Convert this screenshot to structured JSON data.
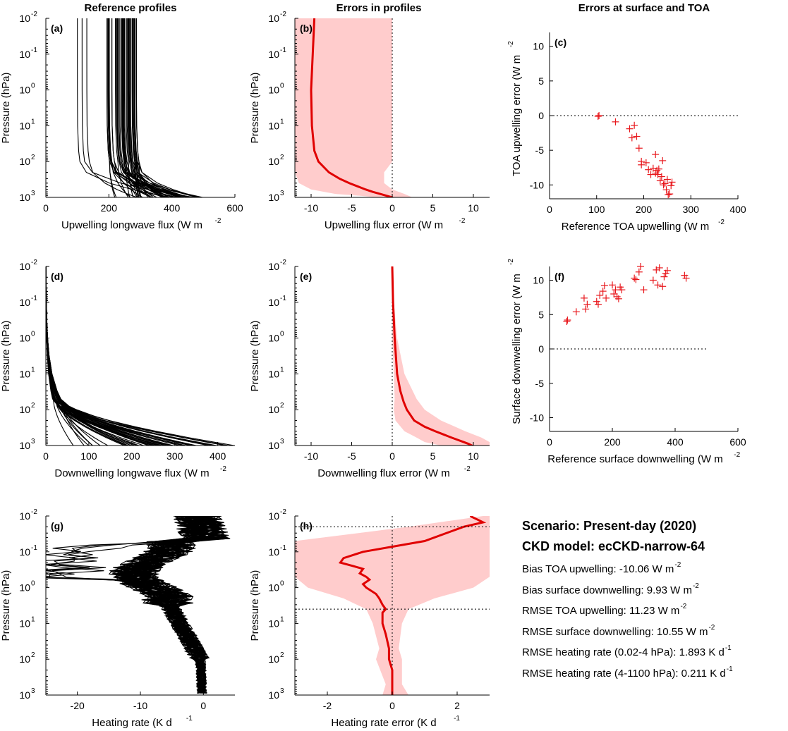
{
  "column_titles": [
    "Reference profiles",
    "Errors in profiles",
    "Errors at surface and TOA"
  ],
  "summary": {
    "scenario": "Scenario: Present-day (2020)",
    "model": "CKD model: ecCKD-narrow-64",
    "stats": [
      {
        "label": "Bias TOA upwelling: -10.06 W m",
        "sup": "-2"
      },
      {
        "label": "Bias surface downwelling: 9.93 W m",
        "sup": "-2"
      },
      {
        "label": "RMSE TOA upwelling: 11.23 W m",
        "sup": "-2"
      },
      {
        "label": "RMSE surface downwelling: 10.55 W m",
        "sup": "-2"
      },
      {
        "label": "RMSE heating rate (0.02-4 hPa):  1.893 K d",
        "sup": "-1"
      },
      {
        "label": "RMSE heating rate (4-1100 hPa):  0.211 K d",
        "sup": "-1"
      }
    ]
  },
  "chart_data": [
    {
      "id": "a",
      "panel_label": "(a)",
      "type": "line",
      "xlabel": "Upwelling longwave flux (W m",
      "xlabel_sup": "-2",
      "ylabel": "Pressure (hPa)",
      "yscale": "log",
      "yreverse": true,
      "xlim": [
        0,
        600
      ],
      "xticks": [
        0,
        200,
        400,
        600
      ],
      "ylim": [
        0.01,
        1000
      ],
      "description_values": "about 50 profiles; TOA flux ~100-300 W m-2, surface flux ~200-500 W m-2",
      "profiles": {
        "count": 50,
        "toa_range": [
          100,
          300
        ],
        "surface_range": [
          200,
          500
        ],
        "kink_pressure": 100
      }
    },
    {
      "id": "b",
      "panel_label": "(b)",
      "type": "line",
      "xlabel": "Upwelling flux error (W m",
      "xlabel_sup": "-2",
      "ylabel": "Pressure (hPa)",
      "yscale": "log",
      "yreverse": true,
      "xlim": [
        -12,
        12
      ],
      "xticks": [
        -10,
        -5,
        0,
        5,
        10
      ],
      "ylim": [
        0.01,
        1000
      ],
      "mean": {
        "pressure": [
          0.01,
          0.1,
          1,
          10,
          50,
          100,
          200,
          300,
          400,
          500,
          600,
          700,
          800,
          900,
          1000,
          1050
        ],
        "value": [
          -9.6,
          -9.8,
          -10.0,
          -9.9,
          -9.6,
          -9.1,
          -7.8,
          -6.5,
          -5.3,
          -4.2,
          -3.3,
          -2.4,
          -1.5,
          -0.7,
          0.0,
          0.1
        ]
      },
      "band": {
        "pressure": [
          0.01,
          0.1,
          1,
          10,
          100,
          200,
          400,
          600,
          800,
          900,
          1000,
          1050
        ],
        "lower": [
          -12,
          -12,
          -12,
          -12,
          -12,
          -12,
          -11.5,
          -10,
          -7,
          -4,
          -2,
          -1
        ],
        "upper": [
          0,
          0,
          0,
          0,
          0,
          -1,
          -1,
          0,
          1.5,
          2,
          2.5,
          2
        ]
      }
    },
    {
      "id": "c",
      "panel_label": "(c)",
      "type": "scatter",
      "xlabel": "Reference TOA upwelling (W m",
      "xlabel_sup": "-2",
      "ylabel": "TOA upwelling error (W m",
      "ylabel_sup": "-2",
      "xlim": [
        0,
        400
      ],
      "xticks": [
        0,
        100,
        200,
        300,
        400
      ],
      "ylim": [
        -12,
        12
      ],
      "yticks": [
        -10,
        -5,
        0,
        5,
        10
      ],
      "x": [
        103,
        105,
        140,
        170,
        175,
        180,
        185,
        190,
        195,
        195,
        205,
        210,
        215,
        220,
        225,
        225,
        228,
        230,
        232,
        235,
        238,
        240,
        242,
        245,
        248,
        250,
        252,
        255,
        258,
        260
      ],
      "y": [
        -0.1,
        0.0,
        -0.9,
        -1.9,
        -3.2,
        -1.4,
        -3.0,
        -4.7,
        -6.6,
        -7.1,
        -6.8,
        -7.8,
        -8.5,
        -7.6,
        -5.6,
        -8.3,
        -7.9,
        -8.5,
        -7.7,
        -9.4,
        -8.8,
        -6.5,
        -10.0,
        -9.8,
        -10.7,
        -9.2,
        -11.4,
        -11.3,
        -10.1,
        -9.6
      ]
    },
    {
      "id": "d",
      "panel_label": "(d)",
      "type": "line",
      "xlabel": "Downwelling longwave flux (W m",
      "xlabel_sup": "-2",
      "ylabel": "Pressure (hPa)",
      "yscale": "log",
      "yreverse": true,
      "xlim": [
        0,
        440
      ],
      "xticks": [
        0,
        100,
        200,
        300,
        400
      ],
      "ylim": [
        0.01,
        1000
      ],
      "profiles": {
        "count": 50,
        "surface_range": [
          60,
          440
        ],
        "kink_pressure": 50
      }
    },
    {
      "id": "e",
      "panel_label": "(e)",
      "type": "line",
      "xlabel": "Downwelling flux error (W m",
      "xlabel_sup": "-2",
      "ylabel": "Pressure (hPa)",
      "yscale": "log",
      "yreverse": true,
      "xlim": [
        -12,
        12
      ],
      "xticks": [
        -10,
        -5,
        0,
        5,
        10
      ],
      "ylim": [
        0.01,
        1000
      ],
      "mean": {
        "pressure": [
          0.01,
          0.1,
          1,
          10,
          30,
          60,
          100,
          200,
          300,
          400,
          500,
          600,
          700,
          800,
          900,
          1000,
          1050
        ],
        "value": [
          0.0,
          0.1,
          0.3,
          0.6,
          1.0,
          1.4,
          1.8,
          2.7,
          4.0,
          5.3,
          6.4,
          7.3,
          8.1,
          8.8,
          9.4,
          9.8,
          10.0
        ]
      },
      "band": {
        "pressure": [
          0.01,
          0.1,
          1,
          10,
          50,
          100,
          200,
          400,
          600,
          800,
          1000,
          1050
        ],
        "lower": [
          0,
          0,
          0,
          0.2,
          0.3,
          0.2,
          0.4,
          1.5,
          3,
          4,
          6,
          7
        ],
        "upper": [
          0.1,
          0.2,
          0.6,
          1.5,
          3,
          4,
          6,
          9,
          11,
          12,
          12,
          12
        ]
      }
    },
    {
      "id": "f",
      "panel_label": "(f)",
      "type": "scatter",
      "xlabel": "Reference surface downwelling (W m",
      "xlabel_sup": "-2",
      "ylabel": "Surface downwelling error (W m",
      "ylabel_sup": "-2",
      "xlim": [
        0,
        600
      ],
      "xticks": [
        0,
        200,
        400,
        600
      ],
      "ylim": [
        -12,
        12
      ],
      "yticks": [
        -10,
        -5,
        0,
        5,
        10
      ],
      "x": [
        55,
        57,
        85,
        110,
        115,
        120,
        150,
        155,
        160,
        170,
        175,
        180,
        200,
        205,
        210,
        215,
        220,
        225,
        230,
        270,
        275,
        285,
        290,
        300,
        330,
        340,
        345,
        350,
        360,
        365,
        370,
        375,
        430,
        435
      ],
      "y": [
        4.0,
        4.2,
        5.4,
        7.4,
        5.8,
        6.5,
        6.9,
        6.5,
        7.8,
        8.4,
        9.2,
        7.4,
        9.3,
        8.0,
        8.6,
        7.6,
        7.3,
        9.0,
        8.6,
        10.3,
        10.1,
        11.2,
        12.0,
        8.6,
        10.0,
        11.5,
        9.3,
        11.8,
        9.1,
        10.5,
        11.0,
        11.4,
        10.7,
        10.3
      ]
    },
    {
      "id": "g",
      "panel_label": "(g)",
      "type": "line",
      "xlabel": "Heating rate (K d",
      "xlabel_sup": "-1",
      "ylabel": "Pressure (hPa)",
      "yscale": "log",
      "yreverse": true,
      "xlim": [
        -25,
        5
      ],
      "xticks": [
        -20,
        -10,
        0
      ],
      "ylim": [
        0.01,
        1000
      ],
      "profiles": {
        "count": 50,
        "range": [
          -25,
          5
        ]
      }
    },
    {
      "id": "h",
      "panel_label": "(h)",
      "type": "line",
      "xlabel": "Heating rate error (K d",
      "xlabel_sup": "-1",
      "ylabel": "Pressure (hPa)",
      "yscale": "log",
      "yreverse": true,
      "xlim": [
        -3,
        3
      ],
      "xticks": [
        -2,
        0,
        2
      ],
      "ylim": [
        0.01,
        1000
      ],
      "hlines": [
        0.02,
        4
      ],
      "mean": {
        "pressure": [
          0.01,
          0.015,
          0.02,
          0.05,
          0.1,
          0.15,
          0.2,
          0.25,
          0.3,
          0.4,
          0.5,
          0.6,
          0.8,
          1,
          1.5,
          2,
          3,
          4,
          5,
          7,
          10,
          20,
          50,
          100,
          200,
          500,
          1000
        ],
        "value": [
          2.4,
          2.8,
          2.2,
          1.0,
          -0.9,
          -1.5,
          -1.6,
          -1.2,
          -0.9,
          -1.0,
          -0.8,
          -0.7,
          -0.9,
          -0.8,
          -0.5,
          -0.4,
          -0.3,
          -0.2,
          -0.3,
          -0.3,
          -0.3,
          -0.2,
          -0.1,
          -0.1,
          0.0,
          0.0,
          0.0
        ]
      },
      "band": {
        "pressure": [
          0.01,
          0.02,
          0.05,
          0.1,
          0.2,
          0.5,
          1,
          2,
          4,
          10,
          50,
          100,
          500,
          1000
        ],
        "lower": [
          2.8,
          0.5,
          -3.0,
          -3.0,
          -3.0,
          -3.0,
          -2.6,
          -1.5,
          -0.8,
          -0.6,
          -0.4,
          -0.5,
          -0.2,
          -0.3
        ],
        "upper": [
          3.0,
          3.0,
          3.0,
          3.0,
          3.0,
          3.0,
          2.5,
          1.3,
          0.5,
          0.3,
          0.2,
          0.3,
          0.3,
          0.5
        ]
      }
    }
  ]
}
